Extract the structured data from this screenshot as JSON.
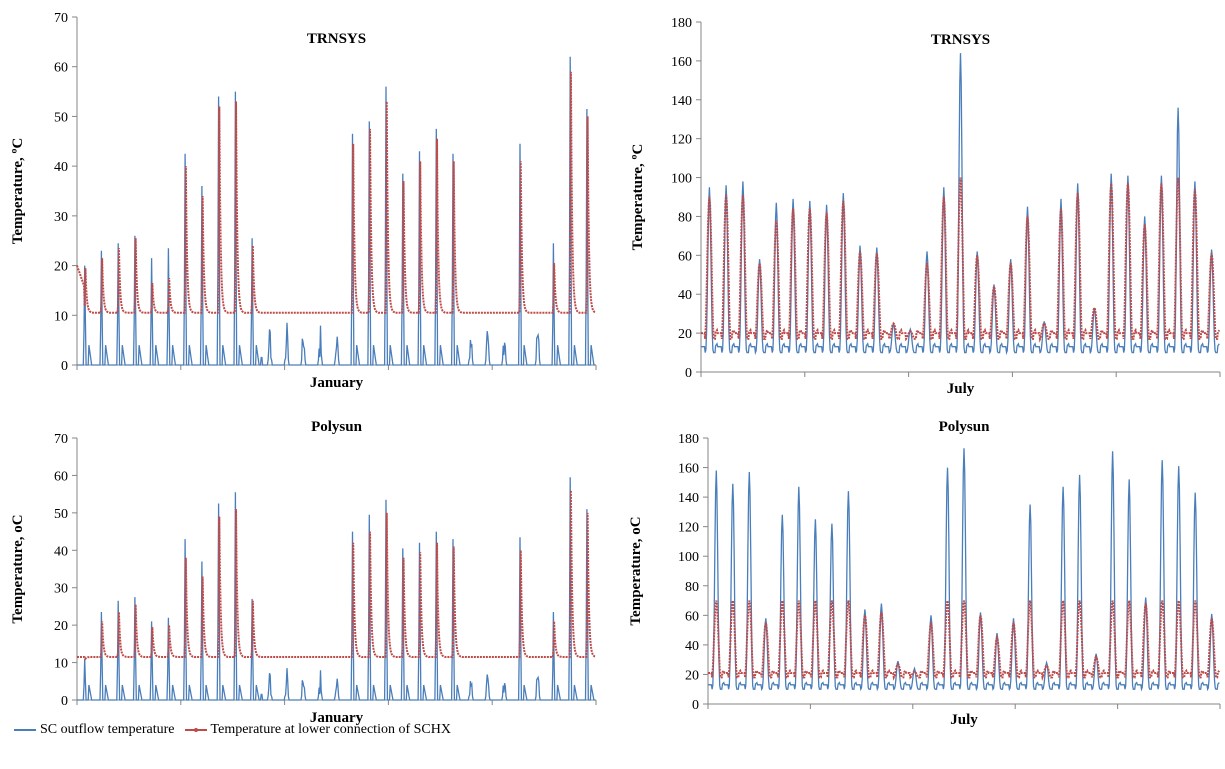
{
  "legend": {
    "items": [
      {
        "label": "SC outflow temperature",
        "color": "#4a7ebb",
        "marker": false
      },
      {
        "label": "Temperature at lower connection of SCHX",
        "color": "#be4b48",
        "marker": true
      }
    ]
  },
  "chart_data": [
    {
      "type": "line",
      "title": "TRNSYS",
      "xlabel": "January",
      "ylabel": "Temperature, ºC",
      "ylim": [
        0,
        70
      ],
      "yticks": [
        0,
        10,
        20,
        30,
        40,
        50,
        60,
        70
      ],
      "x": "hours of month (0-744)",
      "days": 31,
      "series": [
        {
          "name": "SC outflow temperature",
          "color": "#4a7ebb",
          "daily_peak": [
            20,
            23,
            24.5,
            26,
            21.5,
            23.5,
            42.5,
            36,
            54,
            55,
            25.5,
            null,
            null,
            null,
            null,
            null,
            46.5,
            49,
            56,
            38.5,
            43,
            47.5,
            42.5,
            null,
            null,
            null,
            44.5,
            null,
            24.5,
            62,
            51.5
          ],
          "night_value": 0,
          "night_note": "drops to 0 °C each night; small peaks 2-11 °C on overcast days"
        },
        {
          "name": "Temperature at lower connection of SCHX",
          "color": "#be4b48",
          "daily_peak": [
            19.5,
            21.5,
            23.5,
            25.5,
            16.5,
            17.5,
            40,
            34,
            52,
            53,
            24,
            null,
            null,
            null,
            null,
            null,
            44.5,
            47.5,
            53,
            37,
            41,
            45.5,
            41,
            null,
            null,
            null,
            41,
            null,
            20.5,
            59,
            50
          ],
          "baseline": 10.5,
          "start_value": 20
        }
      ]
    },
    {
      "type": "line",
      "title": "TRNSYS",
      "xlabel": "July",
      "ylabel": "Temperature, ºC",
      "ylim": [
        0,
        180
      ],
      "yticks": [
        0,
        20,
        40,
        60,
        80,
        100,
        120,
        140,
        160,
        180
      ],
      "x": "hours of month (0-744)",
      "days": 31,
      "series": [
        {
          "name": "SC outflow temperature",
          "color": "#4a7ebb",
          "daily_peak": [
            95,
            96,
            98,
            58,
            87,
            89,
            88,
            86,
            92,
            65,
            64,
            25,
            22,
            62,
            95,
            164,
            62,
            45,
            58,
            85,
            26,
            89,
            97,
            33,
            102,
            101,
            80,
            101,
            136,
            98,
            63
          ],
          "night_min": 10
        },
        {
          "name": "Temperature at lower connection of SCHX",
          "color": "#be4b48",
          "daily_peak": [
            90,
            91,
            91,
            56,
            78,
            84,
            84,
            82,
            88,
            62,
            61,
            25,
            21,
            56,
            90,
            100,
            60,
            44,
            56,
            80,
            25,
            84,
            92,
            33,
            97,
            97,
            76,
            97,
            100,
            94,
            61
          ],
          "night_min": 17
        }
      ]
    },
    {
      "type": "line",
      "title": "Polysun",
      "xlabel": "January",
      "ylabel": "Temperature, oC",
      "ylim": [
        0,
        70
      ],
      "yticks": [
        0,
        10,
        20,
        30,
        40,
        50,
        60,
        70
      ],
      "x": "hours of month (0-744)",
      "days": 31,
      "series": [
        {
          "name": "SC outflow temperature",
          "color": "#4a7ebb",
          "daily_peak": [
            11,
            23.5,
            26.5,
            27.5,
            21,
            22,
            43,
            37,
            52.5,
            55.5,
            27,
            null,
            null,
            null,
            null,
            null,
            45,
            49.5,
            53.5,
            40.5,
            42,
            45,
            43,
            null,
            null,
            null,
            43.5,
            null,
            23.5,
            59.5,
            51
          ],
          "night_value": 0
        },
        {
          "name": "Temperature at lower connection of SCHX",
          "color": "#be4b48",
          "daily_peak": [
            11,
            21,
            23.5,
            25.5,
            19.5,
            20,
            38,
            33,
            49,
            51,
            26.5,
            null,
            null,
            null,
            null,
            null,
            42,
            45,
            50,
            38,
            39.5,
            42,
            41,
            null,
            null,
            null,
            40,
            null,
            21,
            56,
            50
          ],
          "baseline": 11.5
        }
      ]
    },
    {
      "type": "line",
      "title": "Polysun",
      "xlabel": "July",
      "ylabel": "Temperature, oC",
      "ylim": [
        0,
        180
      ],
      "yticks": [
        0,
        20,
        40,
        60,
        80,
        100,
        120,
        140,
        160,
        180
      ],
      "x": "hours of month (0-744)",
      "days": 31,
      "series": [
        {
          "name": "SC outflow temperature",
          "color": "#4a7ebb",
          "daily_peak": [
            158,
            149,
            157,
            58,
            128,
            147,
            125,
            122,
            144,
            64,
            68,
            29,
            24,
            60,
            160,
            173,
            62,
            48,
            58,
            135,
            28,
            147,
            155,
            34,
            171,
            152,
            72,
            165,
            161,
            143,
            61
          ],
          "night_min": 10
        },
        {
          "name": "Temperature at lower connection of SCHX",
          "color": "#be4b48",
          "daily_peak": [
            70,
            70,
            70,
            55,
            70,
            70,
            70,
            70,
            70,
            60,
            62,
            27,
            22,
            55,
            70,
            70,
            60,
            45,
            55,
            70,
            26,
            70,
            70,
            32,
            70,
            70,
            68,
            70,
            70,
            70,
            58
          ],
          "night_min": 18
        }
      ]
    }
  ]
}
